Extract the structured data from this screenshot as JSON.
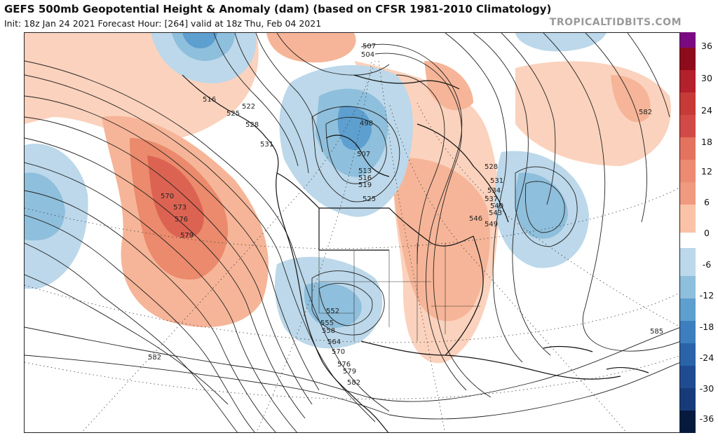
{
  "header": {
    "title": "GEFS 500mb Geopotential Height & Anomaly (dam) (based on CFSR 1981-2010 Climatology)",
    "subtitle": "Init: 18z Jan 24 2021   Forecast Hour: [264]   valid at 18z Thu, Feb 04 2021",
    "brand": "TROPICALTIDBITS.COM"
  },
  "colorbar": {
    "ticks": [
      "36",
      "30",
      "24",
      "18",
      "12",
      "6",
      "0",
      "-6",
      "-12",
      "-18",
      "-24",
      "-30",
      "-36"
    ],
    "colors": [
      "#7b0a82",
      "#8e0b1c",
      "#b4202b",
      "#d24a47",
      "#e3735f",
      "#f09a80",
      "#fac3a8",
      "#ffffff",
      "#ffffff",
      "#bcd8ea",
      "#8ebfdc",
      "#5d9fcf",
      "#3d7fbe",
      "#2a63a8",
      "#1f4c91",
      "#163b78",
      "#0d2a5d",
      "#061a3e"
    ]
  },
  "map": {
    "contour_labels": [
      {
        "text": "507"
      },
      {
        "text": "504"
      },
      {
        "text": "516"
      },
      {
        "text": "522"
      },
      {
        "text": "525"
      },
      {
        "text": "528"
      },
      {
        "text": "531"
      },
      {
        "text": "498"
      },
      {
        "text": "507"
      },
      {
        "text": "513"
      },
      {
        "text": "516"
      },
      {
        "text": "519"
      },
      {
        "text": "525"
      },
      {
        "text": "570"
      },
      {
        "text": "573"
      },
      {
        "text": "576"
      },
      {
        "text": "579"
      },
      {
        "text": "582"
      },
      {
        "text": "528"
      },
      {
        "text": "531"
      },
      {
        "text": "534"
      },
      {
        "text": "537"
      },
      {
        "text": "540"
      },
      {
        "text": "543"
      },
      {
        "text": "546"
      },
      {
        "text": "549"
      },
      {
        "text": "552"
      },
      {
        "text": "555"
      },
      {
        "text": "558"
      },
      {
        "text": "564"
      },
      {
        "text": "570"
      },
      {
        "text": "576"
      },
      {
        "text": "579"
      },
      {
        "text": "582"
      },
      {
        "text": "582"
      },
      {
        "text": "585"
      }
    ]
  }
}
